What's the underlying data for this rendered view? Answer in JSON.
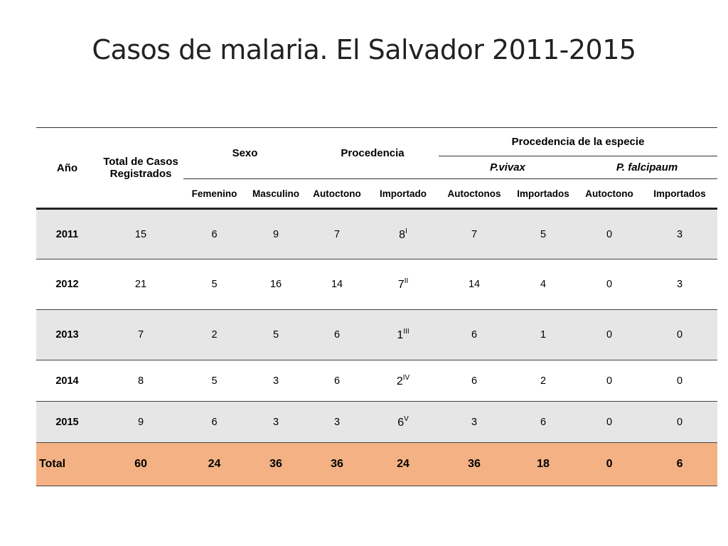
{
  "title": "Casos de malaria. El Salvador 2011-2015",
  "headers": {
    "year": "Año",
    "total": "Total de Casos Registrados",
    "sexo": "Sexo",
    "procedencia": "Procedencia",
    "especie": "Procedencia de la especie",
    "vivax": "P.vivax",
    "falcipaum": "P. falcipaum",
    "femenino": "Femenino",
    "masculino": "Masculino",
    "autoctono": "Autoctono",
    "importado": "Importado",
    "autoctonos": "Autoctonos",
    "importados": "Importados",
    "autoctono2": "Autoctono",
    "importados2": "Importados"
  },
  "rows": [
    {
      "year": "2011",
      "total": "15",
      "fem": "6",
      "masc": "9",
      "auto": "7",
      "imp": "8",
      "imp_note": "I",
      "vivax_auto": "7",
      "vivax_imp": "5",
      "falc_auto": "0",
      "falc_imp": "3"
    },
    {
      "year": "2012",
      "total": "21",
      "fem": "5",
      "masc": "16",
      "auto": "14",
      "imp": "7",
      "imp_note": "II",
      "vivax_auto": "14",
      "vivax_imp": "4",
      "falc_auto": "0",
      "falc_imp": "3"
    },
    {
      "year": "2013",
      "total": "7",
      "fem": "2",
      "masc": "5",
      "auto": "6",
      "imp": "1",
      "imp_note": "III",
      "vivax_auto": "6",
      "vivax_imp": "1",
      "falc_auto": "0",
      "falc_imp": "0"
    },
    {
      "year": "2014",
      "total": "8",
      "fem": "5",
      "masc": "3",
      "auto": "6",
      "imp": "2",
      "imp_note": "IV",
      "vivax_auto": "6",
      "vivax_imp": "2",
      "falc_auto": "0",
      "falc_imp": "0"
    },
    {
      "year": "2015",
      "total": "9",
      "fem": "6",
      "masc": "3",
      "auto": "3",
      "imp": "6",
      "imp_note": "V",
      "vivax_auto": "3",
      "vivax_imp": "6",
      "falc_auto": "0",
      "falc_imp": "0"
    }
  ],
  "totals": {
    "label": "Total",
    "total": "60",
    "fem": "24",
    "masc": "36",
    "auto": "36",
    "imp": "24",
    "vivax_auto": "36",
    "vivax_imp": "18",
    "falc_auto": "0",
    "falc_imp": "6"
  },
  "colors": {
    "shade": "#e6e6e6",
    "total_row": "#f4b183"
  }
}
